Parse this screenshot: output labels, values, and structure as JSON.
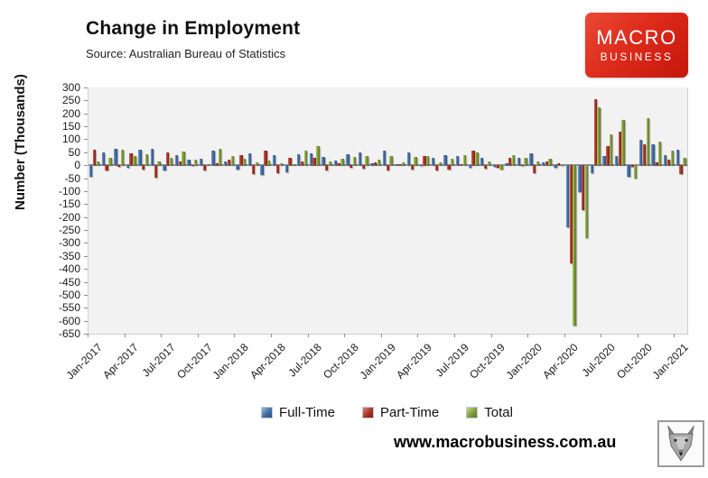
{
  "header": {
    "title": "Change in Employment",
    "subtitle": "Source: Australian Bureau of Statistics",
    "logo": {
      "line1": "MACRO",
      "line2": "BUSINESS",
      "bg_color": "#DD2B1C"
    }
  },
  "chart_data": {
    "type": "bar",
    "title": "Change in Employment",
    "xlabel": "",
    "ylabel": "Number (Thousands)",
    "ylim": [
      -650,
      300
    ],
    "ytick_step": 50,
    "grid": false,
    "legend_position": "bottom",
    "xtick_every": 3,
    "categories": [
      "Jan-2017",
      "Feb-2017",
      "Mar-2017",
      "Apr-2017",
      "May-2017",
      "Jun-2017",
      "Jul-2017",
      "Aug-2017",
      "Sep-2017",
      "Oct-2017",
      "Nov-2017",
      "Dec-2017",
      "Jan-2018",
      "Feb-2018",
      "Mar-2018",
      "Apr-2018",
      "May-2018",
      "Jun-2018",
      "Jul-2018",
      "Aug-2018",
      "Sep-2018",
      "Oct-2018",
      "Nov-2018",
      "Dec-2018",
      "Jan-2019",
      "Feb-2019",
      "Mar-2019",
      "Apr-2019",
      "May-2019",
      "Jun-2019",
      "Jul-2019",
      "Aug-2019",
      "Sep-2019",
      "Oct-2019",
      "Nov-2019",
      "Dec-2019",
      "Jan-2020",
      "Feb-2020",
      "Mar-2020",
      "Apr-2020",
      "May-2020",
      "Jun-2020",
      "Jul-2020",
      "Aug-2020",
      "Sep-2020",
      "Oct-2020",
      "Nov-2020",
      "Dec-2020",
      "Jan-2021"
    ],
    "series": [
      {
        "name": "Full-Time",
        "color": "#416FA6",
        "values": [
          -45,
          50,
          65,
          -8,
          60,
          62,
          -20,
          40,
          20,
          24,
          55,
          15,
          -15,
          45,
          -38,
          38,
          -28,
          42,
          45,
          33,
          18,
          42,
          50,
          8,
          55,
          5,
          48,
          0,
          30,
          40,
          35,
          -10,
          28,
          -5,
          8,
          30,
          45,
          10,
          -10,
          -240,
          -105,
          -30,
          35,
          35,
          -45,
          97,
          80,
          40,
          60
        ]
      },
      {
        "name": "Part-Time",
        "color": "#A93226",
        "values": [
          60,
          -20,
          -5,
          45,
          -18,
          -48,
          48,
          14,
          0,
          -21,
          7,
          20,
          40,
          -35,
          55,
          -30,
          28,
          15,
          30,
          -20,
          8,
          -10,
          -13,
          12,
          -20,
          5,
          -15,
          35,
          -20,
          -15,
          5,
          58,
          -13,
          -10,
          30,
          -2,
          -30,
          15,
          6,
          -380,
          -175,
          255,
          75,
          130,
          -5,
          82,
          10,
          20,
          -35
        ]
      },
      {
        "name": "Total",
        "color": "#7F9D39",
        "values": [
          15,
          30,
          60,
          37,
          42,
          14,
          28,
          54,
          20,
          3,
          62,
          35,
          25,
          10,
          17,
          8,
          5,
          57,
          75,
          13,
          26,
          32,
          37,
          20,
          35,
          10,
          33,
          35,
          10,
          25,
          40,
          48,
          15,
          -15,
          38,
          28,
          15,
          25,
          -4,
          -620,
          -280,
          225,
          120,
          175,
          -50,
          180,
          90,
          55,
          30
        ]
      }
    ]
  },
  "footer": {
    "url": "www.macrobusiness.com.au",
    "logo_name": "wolf-logo"
  }
}
